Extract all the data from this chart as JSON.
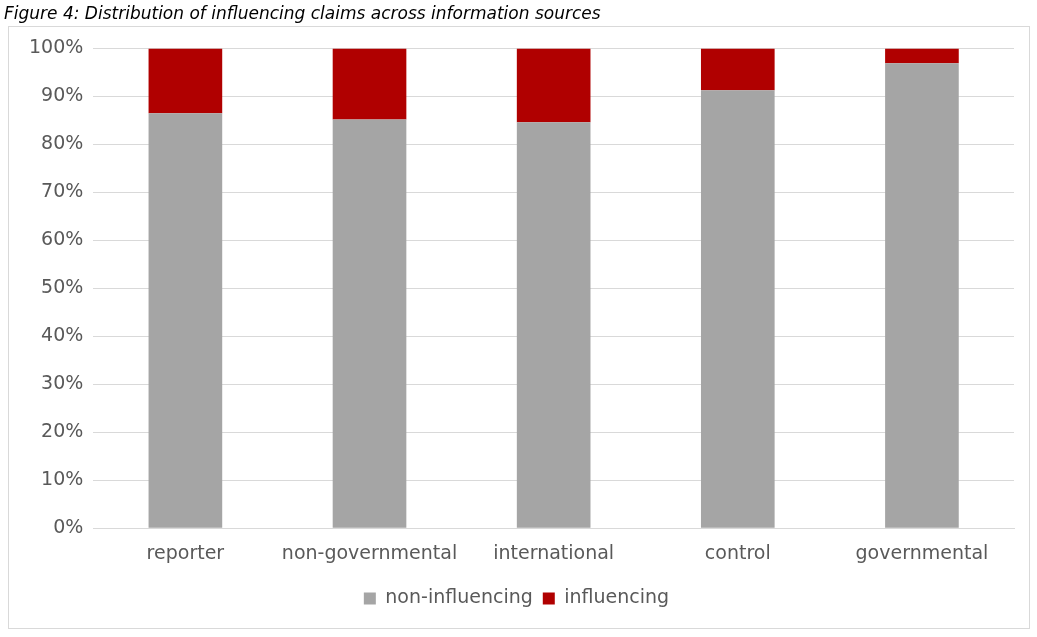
{
  "chart_data": {
    "type": "bar",
    "title": "Figure 4: Distribution of influencing claims across information sources",
    "categories": [
      "reporter",
      "non-governmental",
      "international",
      "control",
      "governmental"
    ],
    "series": [
      {
        "name": "non-influencing",
        "color": "#a5a5a5",
        "values": [
          86.5,
          85.2,
          84.6,
          91.3,
          96.9
        ]
      },
      {
        "name": "influencing",
        "color": "#b00000",
        "values": [
          13.5,
          14.8,
          15.4,
          8.7,
          3.1
        ]
      }
    ],
    "stacked": true,
    "ylim": [
      0,
      100
    ],
    "yticks": [
      {
        "value": 0,
        "label": "0%"
      },
      {
        "value": 10,
        "label": "10%"
      },
      {
        "value": 20,
        "label": "20%"
      },
      {
        "value": 30,
        "label": "30%"
      },
      {
        "value": 40,
        "label": "40%"
      },
      {
        "value": 50,
        "label": "50%"
      },
      {
        "value": 60,
        "label": "60%"
      },
      {
        "value": 70,
        "label": "70%"
      },
      {
        "value": 80,
        "label": "80%"
      },
      {
        "value": 90,
        "label": "90%"
      },
      {
        "value": 100,
        "label": "100%"
      }
    ],
    "grid": "y",
    "legend": "bottom"
  }
}
